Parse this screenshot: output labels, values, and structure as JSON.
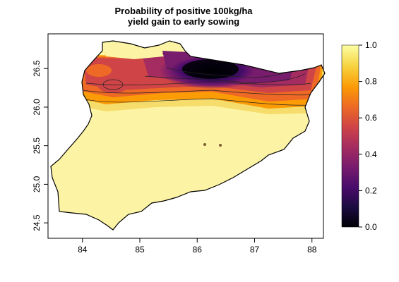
{
  "title_line1": "Probability of positive 100kg/ha",
  "title_line2": "yield gain to early sowing",
  "map": {
    "x_ticks": [
      84,
      85,
      86,
      87,
      88
    ],
    "y_ticks": [
      24.5,
      25.0,
      25.5,
      26.0,
      26.5
    ],
    "x_tick_labels": [
      "84",
      "85",
      "86",
      "87",
      "88"
    ],
    "y_tick_labels": [
      "24.5",
      "25.0",
      "25.5",
      "26.0",
      "26.5"
    ],
    "x_range": [
      83.4,
      88.2
    ],
    "y_range": [
      24.3,
      26.95
    ],
    "colormap": "inferno"
  },
  "colorbar": {
    "ticks": [
      0.0,
      0.2,
      0.4,
      0.6,
      0.8,
      1.0
    ],
    "tick_labels": [
      "0.0",
      "0.2",
      "0.4",
      "0.6",
      "0.8",
      "1.0"
    ],
    "range": [
      0.0,
      1.0
    ],
    "colors": [
      "#000004",
      "#1b0c41",
      "#4a0c6b",
      "#781c6d",
      "#a52c60",
      "#cf4446",
      "#ed6925",
      "#fb9b06",
      "#f7d13d",
      "#fcffa4"
    ]
  },
  "colors": {
    "background": "#ffffff",
    "frame": "#000000",
    "land_high": "#fcf4a4"
  }
}
